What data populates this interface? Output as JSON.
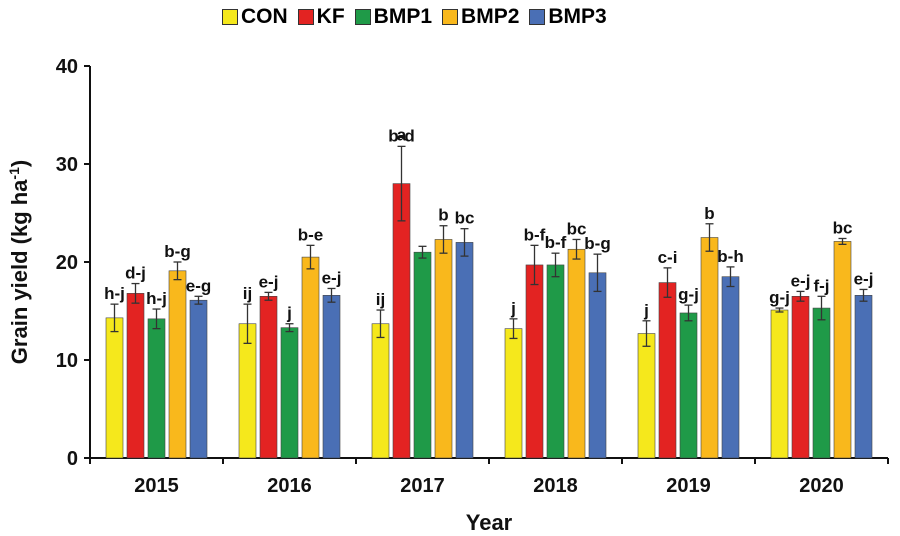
{
  "chart_data": {
    "type": "bar",
    "title": "",
    "xlabel": "Year",
    "ylabel": "Grain yield (kg ha",
    "ylabel_sup": "-1",
    "ylabel_close": ")",
    "ylim": [
      0,
      40
    ],
    "yticks": [
      "0",
      "10",
      "20",
      "30",
      "40"
    ],
    "grid": false,
    "legend_position": "top",
    "categories": [
      "2015",
      "2016",
      "2017",
      "2018",
      "2019",
      "2020"
    ],
    "series": [
      {
        "name": "CON",
        "color": "#f5e81c",
        "values": [
          14.3,
          13.7,
          13.7,
          13.2,
          12.7,
          15.1
        ],
        "errors": [
          1.4,
          2.0,
          1.4,
          1.0,
          1.3,
          0.2
        ],
        "labels": [
          "h-j",
          "ij",
          "ij",
          "j",
          "j",
          "g-j"
        ]
      },
      {
        "name": "KF",
        "color": "#e32322",
        "values": [
          16.8,
          16.5,
          28.0,
          19.7,
          17.9,
          16.5
        ],
        "errors": [
          1.0,
          0.4,
          3.8,
          2.0,
          1.5,
          0.5
        ],
        "labels": [
          "d-j",
          "e-j",
          "b-d",
          "b-f",
          "c-i",
          "e-j"
        ]
      },
      {
        "name": "BMP1",
        "color": "#1f9a48",
        "values": [
          14.2,
          13.3,
          21.0,
          19.7,
          14.8,
          15.3
        ],
        "errors": [
          1.0,
          0.4,
          0.6,
          1.2,
          0.8,
          1.2
        ],
        "labels": [
          "h-j",
          "j",
          "",
          "b-f",
          "g-j",
          "f-j"
        ]
      },
      {
        "name": "BMP2",
        "color": "#f9b81c",
        "values": [
          19.1,
          20.5,
          22.3,
          21.3,
          22.5,
          22.1
        ],
        "errors": [
          0.9,
          1.2,
          1.4,
          1.0,
          1.4,
          0.3
        ],
        "labels": [
          "b-g",
          "b-e",
          "b",
          "bc",
          "b",
          "bc"
        ]
      },
      {
        "name": "BMP3",
        "color": "#4a6fb5",
        "values": [
          16.1,
          16.6,
          22.0,
          18.9,
          18.5,
          16.6
        ],
        "errors": [
          0.4,
          0.7,
          1.4,
          1.9,
          1.0,
          0.6
        ],
        "labels": [
          "e-g",
          "e-j",
          "bc",
          "b-g",
          "b-h",
          "e-j"
        ]
      }
    ],
    "annotations": [
      {
        "text": "a",
        "category": "2017",
        "above_value": 31.8
      }
    ]
  }
}
